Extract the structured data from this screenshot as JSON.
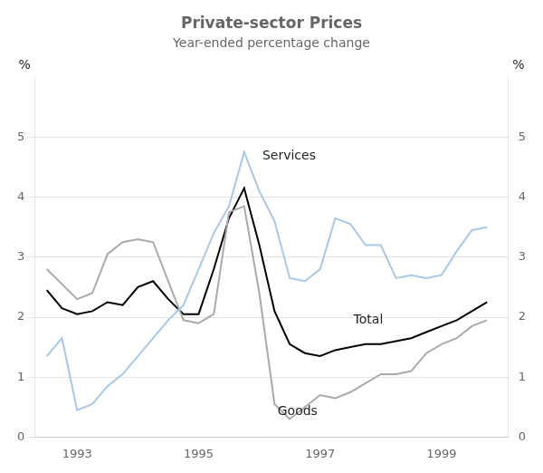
{
  "chart_data": {
    "type": "line",
    "title": "Private-sector Prices",
    "subtitle": "Year-ended percentage change",
    "y_label": "%",
    "y2_label": "%",
    "x": [
      1992.5,
      1992.75,
      1993.0,
      1993.25,
      1993.5,
      1993.75,
      1994.0,
      1994.25,
      1994.5,
      1994.75,
      1995.0,
      1995.25,
      1995.5,
      1995.75,
      1996.0,
      1996.25,
      1996.5,
      1996.75,
      1997.0,
      1997.25,
      1997.5,
      1997.75,
      1998.0,
      1998.25,
      1998.5,
      1998.75,
      1999.0,
      1999.25,
      1999.5,
      1999.75
    ],
    "series": [
      {
        "name": "Services",
        "color": "#a8c8e8",
        "values": [
          1.35,
          1.65,
          0.45,
          0.55,
          0.85,
          1.05,
          1.35,
          1.65,
          1.95,
          2.2,
          2.8,
          3.4,
          3.85,
          4.75,
          4.1,
          3.6,
          2.65,
          2.6,
          2.8,
          3.65,
          3.55,
          3.2,
          3.2,
          2.65,
          2.7,
          2.65,
          2.7,
          3.1,
          3.45,
          3.5
        ]
      },
      {
        "name": "Goods",
        "color": "#aaaaaa",
        "values": [
          2.8,
          2.55,
          2.3,
          2.4,
          3.05,
          3.25,
          3.3,
          3.25,
          2.6,
          1.95,
          1.9,
          2.05,
          3.75,
          3.85,
          2.4,
          0.55,
          0.3,
          0.5,
          0.7,
          0.65,
          0.75,
          0.9,
          1.05,
          1.05,
          1.1,
          1.4,
          1.55,
          1.65,
          1.85,
          1.95
        ]
      },
      {
        "name": "Total",
        "color": "#000000",
        "values": [
          2.45,
          2.15,
          2.05,
          2.1,
          2.25,
          2.2,
          2.5,
          2.6,
          2.3,
          2.05,
          2.05,
          2.8,
          3.65,
          4.15,
          3.2,
          2.1,
          1.55,
          1.4,
          1.35,
          1.45,
          1.5,
          1.55,
          1.55,
          1.6,
          1.65,
          1.75,
          1.85,
          1.95,
          2.1,
          2.25
        ]
      }
    ],
    "xlim": [
      1992.3,
      2000.1
    ],
    "xticks": [
      1993,
      1995,
      1997,
      1999
    ],
    "ylim": [
      0,
      6
    ],
    "yticks": [
      0,
      1,
      2,
      3,
      4,
      5
    ],
    "y2lim": [
      0,
      6
    ],
    "y2ticks": [
      0,
      1,
      2,
      3,
      4,
      5
    ],
    "grid": "y",
    "annotations": [
      {
        "text": "Services",
        "x": 1996.05,
        "y": 4.58
      },
      {
        "text": "Total",
        "x": 1997.55,
        "y": 1.85
      },
      {
        "text": "Goods",
        "x": 1996.3,
        "y": 0.32
      }
    ]
  }
}
